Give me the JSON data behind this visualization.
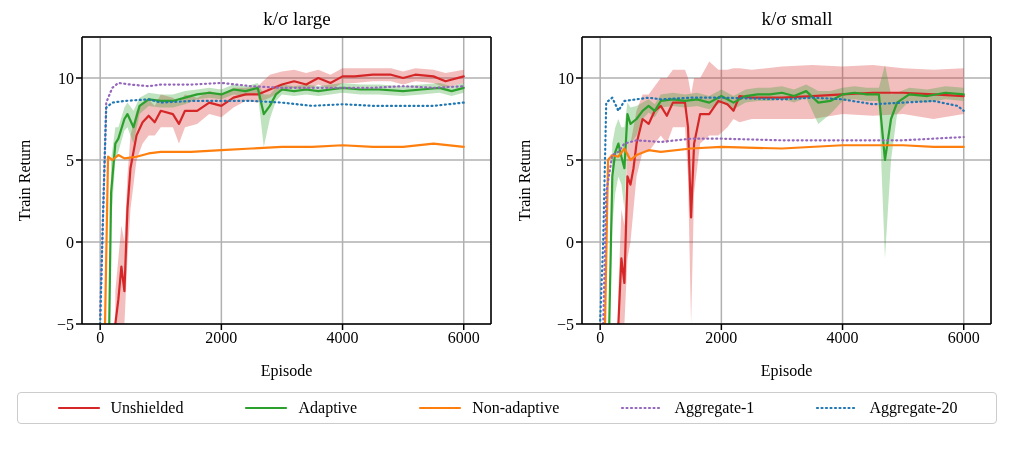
{
  "chart_data": [
    {
      "type": "line",
      "title": "k/σ large",
      "xlabel": "Episode",
      "ylabel": "Train Return",
      "xlim": [
        -300,
        6450
      ],
      "ylim": [
        -5,
        12.5
      ],
      "xticks": [
        0,
        2000,
        4000,
        6000
      ],
      "yticks": [
        -5,
        0,
        5,
        10
      ],
      "grid": true,
      "legend": "bottom",
      "marker": "none",
      "series": [
        {
          "name": "Unshielded",
          "color": "#d62728",
          "line_style": "solid",
          "x": [
            250,
            300,
            350,
            400,
            450,
            500,
            600,
            700,
            800,
            900,
            1000,
            1200,
            1300,
            1400,
            1600,
            1800,
            2000,
            2200,
            2400,
            2600,
            2800,
            3000,
            3200,
            3400,
            3600,
            3800,
            4000,
            4200,
            4500,
            4800,
            5000,
            5200,
            5500,
            5700,
            6000
          ],
          "values": [
            -5,
            -3.5,
            -1.5,
            -3,
            2,
            4.5,
            6.5,
            7.3,
            7.7,
            7.3,
            8,
            7.8,
            7.2,
            8,
            8,
            8.5,
            8.3,
            8.8,
            9,
            9,
            9.3,
            9.6,
            9.8,
            9.6,
            10,
            9.7,
            10.1,
            10.1,
            10.2,
            10.2,
            10,
            10.2,
            10.1,
            9.8,
            10.1
          ],
          "lower": [
            -5,
            -5,
            -5,
            -5,
            -1,
            2,
            5,
            6,
            6.5,
            6.5,
            7,
            7,
            6,
            7,
            7.2,
            7.8,
            7.6,
            8.2,
            8.6,
            8.5,
            8.8,
            9.2,
            9.4,
            9.2,
            9.6,
            9.3,
            9.7,
            9.7,
            9.8,
            9.8,
            9.6,
            9.8,
            9.7,
            9.4,
            9.7
          ],
          "upper": [
            -3,
            -1,
            1,
            0,
            4,
            6.5,
            8,
            8.5,
            8.7,
            8.3,
            9,
            8.8,
            8.5,
            9,
            8.8,
            9.2,
            9,
            9.4,
            9.4,
            9.5,
            10.2,
            10.4,
            10.5,
            10.3,
            10.5,
            10.2,
            10.6,
            10.6,
            10.6,
            10.6,
            10.4,
            10.6,
            10.5,
            10.3,
            10.5
          ]
        },
        {
          "name": "Adaptive",
          "color": "#2ca02c",
          "line_style": "solid",
          "x": [
            150,
            180,
            250,
            300,
            400,
            450,
            550,
            650,
            800,
            1000,
            1200,
            1400,
            1600,
            1800,
            2000,
            2200,
            2400,
            2600,
            2700,
            2800,
            2900,
            3000,
            3200,
            3400,
            3600,
            3800,
            4000,
            4300,
            4600,
            5000,
            5300,
            5600,
            5800,
            6000
          ],
          "values": [
            -5,
            3,
            6,
            6.3,
            7.5,
            7.8,
            7,
            8.3,
            8.7,
            8.6,
            8.6,
            8.8,
            9,
            9.1,
            9,
            9.3,
            9.2,
            9.4,
            7.8,
            8.3,
            9,
            9.3,
            9.2,
            9.3,
            9.2,
            9.3,
            9.4,
            9.3,
            9.3,
            9.2,
            9.3,
            9.4,
            9.2,
            9.4
          ],
          "lower": [
            -5,
            1,
            5,
            5.5,
            6.8,
            7,
            6,
            7.8,
            8.3,
            8.2,
            8.2,
            8.4,
            8.7,
            8.8,
            8.7,
            9,
            8.9,
            9.1,
            5.8,
            7.5,
            8.6,
            9,
            8.9,
            9,
            8.9,
            9,
            9.1,
            9,
            9,
            8.9,
            9,
            9.1,
            8.9,
            9.1
          ],
          "upper": [
            -4,
            5,
            7,
            7,
            8.2,
            8.5,
            8,
            8.8,
            9.1,
            9,
            9,
            9.2,
            9.3,
            9.4,
            9.3,
            9.6,
            9.5,
            9.7,
            9,
            9,
            9.4,
            9.6,
            9.5,
            9.6,
            9.5,
            9.6,
            9.7,
            9.6,
            9.6,
            9.5,
            9.6,
            9.7,
            9.5,
            9.7
          ]
        },
        {
          "name": "Non-adaptive",
          "color": "#ff7f0e",
          "line_style": "solid",
          "x": [
            80,
            130,
            200,
            300,
            400,
            600,
            800,
            1000,
            1500,
            2000,
            2500,
            3000,
            3500,
            4000,
            4500,
            5000,
            5500,
            6000
          ],
          "values": [
            -5,
            5.2,
            5,
            5.3,
            5.1,
            5.2,
            5.4,
            5.5,
            5.5,
            5.6,
            5.7,
            5.8,
            5.8,
            5.9,
            5.8,
            5.8,
            6,
            5.8
          ]
        },
        {
          "name": "Aggregate-1",
          "color": "#9467bd",
          "line_style": "dotted",
          "x": [
            0,
            50,
            100,
            200,
            300,
            500,
            800,
            1000,
            1500,
            2000,
            2500,
            3000,
            3500,
            4000,
            4500,
            5000,
            5500,
            6000
          ],
          "values": [
            -4.5,
            2,
            8.5,
            9.4,
            9.7,
            9.6,
            9.5,
            9.6,
            9.6,
            9.7,
            9.5,
            9.4,
            9.4,
            9.4,
            9.4,
            9.5,
            9.4,
            9.5
          ]
        },
        {
          "name": "Aggregate-20",
          "color": "#1f77b4",
          "line_style": "dotted",
          "x": [
            0,
            50,
            100,
            200,
            400,
            800,
            1000,
            1500,
            2000,
            2500,
            3000,
            3500,
            4000,
            4500,
            5000,
            5500,
            6000
          ],
          "values": [
            -5,
            2,
            8.2,
            8.5,
            8.6,
            8.7,
            8.5,
            8.6,
            8.6,
            8.6,
            8.5,
            8.3,
            8.4,
            8.3,
            8.3,
            8.3,
            8.5
          ]
        }
      ]
    },
    {
      "type": "line",
      "title": "k/σ small",
      "xlabel": "Episode",
      "ylabel": "Train Return",
      "xlim": [
        -300,
        6450
      ],
      "ylim": [
        -5,
        12.5
      ],
      "xticks": [
        0,
        2000,
        4000,
        6000
      ],
      "yticks": [
        -5,
        0,
        5,
        10
      ],
      "grid": true,
      "legend": "bottom",
      "marker": "none",
      "series": [
        {
          "name": "Unshielded",
          "color": "#d62728",
          "line_style": "solid",
          "x": [
            300,
            350,
            400,
            450,
            500,
            550,
            600,
            700,
            800,
            900,
            1000,
            1100,
            1200,
            1400,
            1450,
            1500,
            1550,
            1650,
            1800,
            1950,
            2100,
            2200,
            2300,
            2500,
            3000,
            3500,
            4000,
            4500,
            5000,
            5500,
            6000
          ],
          "values": [
            -5,
            -1,
            -2.5,
            4,
            3.5,
            4.5,
            6,
            7.5,
            7.2,
            8,
            8.3,
            7.7,
            8.5,
            8.5,
            7,
            1.5,
            6,
            7.8,
            7.8,
            8.6,
            8.4,
            8,
            8.9,
            8.8,
            8.8,
            8.9,
            9,
            9.1,
            9.1,
            9,
            8.9
          ],
          "lower": [
            -5,
            -5,
            -5,
            -1,
            0,
            2,
            4,
            5.5,
            5.5,
            6,
            6.5,
            6,
            7,
            7,
            4,
            -5,
            3,
            6,
            6.5,
            6.5,
            7,
            7.5,
            7.3,
            7.5,
            7.5,
            7.5,
            7.8,
            7.7,
            7.8,
            7.5,
            7.8
          ],
          "upper": [
            -3,
            2,
            1,
            6,
            6,
            7,
            8,
            9,
            9,
            9.5,
            10,
            10,
            10.5,
            10.5,
            10,
            9,
            10,
            10,
            11,
            10.5,
            10.5,
            10.6,
            10.6,
            10.5,
            10.7,
            10.8,
            10.7,
            10.8,
            10.6,
            10.5,
            10.6
          ]
        },
        {
          "name": "Adaptive",
          "color": "#2ca02c",
          "line_style": "solid",
          "x": [
            150,
            200,
            250,
            300,
            350,
            400,
            450,
            500,
            600,
            700,
            800,
            900,
            1000,
            1200,
            1400,
            1600,
            1800,
            2000,
            2200,
            2400,
            2600,
            2800,
            3000,
            3200,
            3400,
            3600,
            3800,
            4000,
            4200,
            4400,
            4600,
            4700,
            4800,
            4900,
            5100,
            5400,
            5700,
            6000
          ],
          "values": [
            -5,
            4,
            5.5,
            6,
            5.2,
            4.5,
            7.8,
            7.2,
            7.5,
            8,
            8.3,
            8,
            8.6,
            8.7,
            8.6,
            8.7,
            8.5,
            8.9,
            8.5,
            8.9,
            9,
            9,
            9.1,
            8.9,
            9.2,
            8.5,
            8.6,
            9,
            9.1,
            9,
            9,
            5,
            7.5,
            8.5,
            9,
            8.9,
            9.1,
            9
          ],
          "lower": [
            -5,
            1,
            3,
            4,
            3.5,
            2,
            6,
            6,
            6.5,
            7.5,
            7.9,
            7.6,
            8.2,
            8.3,
            8.2,
            8.3,
            8.1,
            8.5,
            8.1,
            8.5,
            8.6,
            8.6,
            8.7,
            8.5,
            8.8,
            7.2,
            7.8,
            8.6,
            8.7,
            8.6,
            8.6,
            -1,
            5,
            7.8,
            8.6,
            8.5,
            8.7,
            8.6
          ],
          "upper": [
            -4,
            6,
            7,
            7.5,
            7,
            7,
            8.5,
            8.2,
            8.3,
            8.5,
            8.7,
            8.4,
            9,
            9.1,
            9,
            9.1,
            8.9,
            9.3,
            8.9,
            9.3,
            9.4,
            9.4,
            9.5,
            9.3,
            9.6,
            9.2,
            9.2,
            9.4,
            9.5,
            9.4,
            9.4,
            10.8,
            9,
            9.1,
            9.4,
            9.3,
            9.5,
            9.4
          ]
        },
        {
          "name": "Non-adaptive",
          "color": "#ff7f0e",
          "line_style": "solid",
          "x": [
            80,
            130,
            200,
            300,
            400,
            500,
            600,
            800,
            1000,
            1500,
            2000,
            3000,
            4000,
            5000,
            5500,
            6000
          ],
          "values": [
            -5,
            5,
            5.3,
            5.2,
            5.7,
            5,
            5.3,
            5.6,
            5.5,
            5.7,
            5.8,
            5.7,
            5.9,
            5.9,
            5.8,
            5.8
          ]
        },
        {
          "name": "Aggregate-1",
          "color": "#9467bd",
          "line_style": "dotted",
          "x": [
            50,
            100,
            200,
            300,
            400,
            600,
            1000,
            1500,
            2000,
            3000,
            4000,
            5000,
            6000
          ],
          "values": [
            -5,
            3,
            5.3,
            5.5,
            6,
            6.2,
            6.1,
            6.3,
            6.3,
            6.2,
            6.2,
            6.2,
            6.4
          ]
        },
        {
          "name": "Aggregate-20",
          "color": "#1f77b4",
          "line_style": "dotted",
          "x": [
            0,
            50,
            100,
            200,
            300,
            400,
            600,
            800,
            1000,
            1500,
            2000,
            3000,
            3500,
            4000,
            4500,
            5000,
            5500,
            5900,
            6000
          ],
          "values": [
            -4.8,
            0,
            8.5,
            8.8,
            8,
            8.6,
            8.7,
            8.8,
            8.7,
            8.8,
            8.8,
            8.7,
            8.8,
            8.7,
            8.4,
            8.5,
            8.6,
            8.3,
            8
          ]
        }
      ]
    }
  ]
}
